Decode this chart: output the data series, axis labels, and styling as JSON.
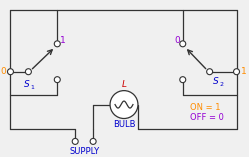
{
  "bg_color": "#f0f0f0",
  "line_color": "#333333",
  "color_orange": "#ff8c00",
  "color_purple": "#9400d3",
  "color_blue": "#0000cd",
  "color_red": "#cc0000",
  "label_SUPPLY": "SUPPLY",
  "label_BULB": "BULB",
  "label_L": "L",
  "label_ON": "ON = 1",
  "label_OFF": "OFF = 0",
  "label_0_left": "0",
  "label_0_right": "0",
  "label_1_left": "1",
  "label_1_right": "1",
  "label_s1_top": "1",
  "label_s2_top": "0"
}
